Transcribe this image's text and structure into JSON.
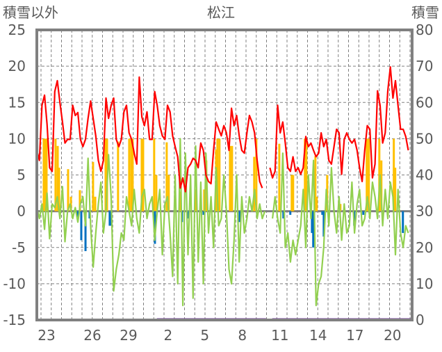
{
  "chart_data": {
    "type": "line",
    "title": "松江",
    "ylabel_left": "積雪以外",
    "ylabel_right": "積雪",
    "ylim_left": [
      -15,
      25
    ],
    "yticks_left": [
      25,
      20,
      15,
      10,
      5,
      0,
      -5,
      -10,
      -15
    ],
    "ylim_right": [
      0,
      80
    ],
    "yticks_right": [
      80,
      70,
      60,
      50,
      40,
      30,
      20,
      10,
      0
    ],
    "xlim_days": [
      0,
      29.3
    ],
    "xticks": [
      {
        "label": "23",
        "t": 0.76
      },
      {
        "label": "26",
        "t": 4.34
      },
      {
        "label": "29",
        "t": 7.16
      },
      {
        "label": "2",
        "t": 10.25
      },
      {
        "label": "5",
        "t": 13.12
      },
      {
        "label": "8",
        "t": 16.05
      },
      {
        "label": "11",
        "t": 18.98
      },
      {
        "label": "14",
        "t": 21.96
      },
      {
        "label": "17",
        "t": 24.84
      },
      {
        "label": "20",
        "t": 27.77
      }
    ],
    "grid": true,
    "colors": {
      "red": "#ff0000",
      "green": "#92d050",
      "orange": "#ffc000",
      "blue": "#0070c0",
      "purple": "#7030a0",
      "frame": "#808080"
    },
    "line_step_days": 0.2,
    "red_series": [
      8.4,
      7,
      14.6,
      16,
      12,
      6,
      5.5,
      16.5,
      18,
      15,
      12.3,
      9.4,
      9.9,
      9.9,
      14.6,
      13.2,
      13.6,
      9.9,
      8.9,
      9.9,
      12.8,
      15.2,
      12.8,
      10.4,
      7,
      5.5,
      7,
      15.6,
      12.8,
      14.6,
      15.6,
      9.9,
      8.9,
      9.9,
      13.7,
      14.6,
      10.8,
      9.9,
      8,
      6.5,
      18.5,
      13,
      11.8,
      13.7,
      9.9,
      9.9,
      16.5,
      14.6,
      11.8,
      10.4,
      9.9,
      14.6,
      13.7,
      10.4,
      8.9,
      7.5,
      3.2,
      4.6,
      2.7,
      6,
      6.5,
      7.3,
      7,
      6,
      9.4,
      8.4,
      5,
      4.1,
      3.8,
      8.4,
      12.3,
      11.3,
      10.4,
      11.8,
      10.8,
      8.4,
      14.2,
      11.8,
      13.2,
      10.4,
      8.4,
      8,
      10.8,
      13.2,
      12.3,
      10.8,
      7,
      4.1,
      3.2,
      null,
      null,
      6,
      4.6,
      5.5,
      14.6,
      10.8,
      12.3,
      9.4,
      6,
      5.5,
      7.5,
      5.5,
      6,
      5.1,
      6,
      10.3,
      8.9,
      9.4,
      8.4,
      7.5,
      8,
      10.8,
      8.9,
      9.9,
      7,
      6.5,
      8.9,
      11.3,
      10.8,
      5.1,
      9.9,
      10.8,
      9.9,
      9.4,
      9.9,
      8.4,
      6,
      4.1,
      8.4,
      11.8,
      11.3,
      4.6,
      6.5,
      16.6,
      14.6,
      9.4,
      10.8,
      16.6,
      19.9,
      15.6,
      18,
      14.6,
      11.3,
      11.3,
      10.3,
      8.4
    ],
    "green_series": [
      0.5,
      -1,
      1,
      -2.5,
      2.5,
      -3.8,
      1,
      0.5,
      2,
      -1,
      3.4,
      -4.2,
      0,
      1,
      -1,
      0.5,
      -1.5,
      1,
      2,
      -2,
      7.3,
      -2,
      -7.7,
      -3,
      1,
      4,
      -3,
      0,
      7.8,
      2,
      -11,
      -8,
      -6,
      -3,
      -4,
      2,
      0,
      -2,
      3,
      -1,
      -3,
      2,
      3,
      -1,
      1,
      2,
      -4,
      0,
      3,
      -6,
      1,
      2,
      -3,
      -9,
      5,
      -10,
      10,
      -13,
      8,
      -6,
      5,
      -12,
      9,
      -7,
      4,
      -10,
      8,
      -3,
      2,
      -5,
      6,
      -2,
      -1,
      5,
      0,
      -8,
      -10,
      -4,
      5,
      -7,
      2,
      -3,
      -1,
      2,
      0,
      3,
      -1,
      1,
      -1,
      0,
      null,
      null,
      -1,
      2,
      -1,
      -3,
      8,
      -5,
      -3,
      -7,
      -4,
      -6,
      -4,
      -2,
      3,
      -5,
      5,
      -1,
      7,
      -13,
      -10,
      -9,
      -5,
      3,
      -2,
      6,
      0,
      -3,
      2,
      -4,
      1,
      -3,
      -2,
      4,
      -3,
      1,
      3,
      -2,
      -1,
      2,
      -1,
      4,
      2,
      -1,
      5,
      -2,
      3,
      -1,
      4,
      2,
      -6,
      3,
      -3,
      -5,
      -2,
      -3
    ],
    "orange_bars": [
      [
        0.54,
        10
      ],
      [
        0.65,
        10
      ],
      [
        0.76,
        10
      ],
      [
        1.46,
        10
      ],
      [
        1.63,
        9
      ],
      [
        1.74,
        6
      ],
      [
        2.44,
        5.8
      ],
      [
        2.66,
        2
      ],
      [
        3.36,
        2.9
      ],
      [
        4.39,
        6.8
      ],
      [
        4.56,
        2
      ],
      [
        5.37,
        10
      ],
      [
        5.48,
        10
      ],
      [
        6.34,
        9.6
      ],
      [
        7.21,
        10
      ],
      [
        7.38,
        10
      ],
      [
        7.48,
        10
      ],
      [
        8.19,
        10
      ],
      [
        8.3,
        10
      ],
      [
        9.16,
        10
      ],
      [
        9.33,
        5
      ],
      [
        10.14,
        9.5
      ],
      [
        10.3,
        5
      ],
      [
        11.23,
        2.7
      ],
      [
        12.42,
        3
      ],
      [
        13.07,
        3
      ],
      [
        13.23,
        7
      ],
      [
        14.0,
        8.5
      ],
      [
        14.1,
        10
      ],
      [
        14.26,
        10
      ],
      [
        15.08,
        9
      ],
      [
        15.24,
        9
      ],
      [
        16.0,
        1
      ],
      [
        16.97,
        7.5
      ],
      [
        17.14,
        10
      ],
      [
        18.93,
        9.3
      ],
      [
        19.9,
        5
      ],
      [
        20.01,
        5
      ],
      [
        20.93,
        10
      ],
      [
        21.04,
        10
      ],
      [
        21.75,
        7.6
      ],
      [
        21.85,
        2
      ],
      [
        22.67,
        5
      ],
      [
        23.7,
        1
      ],
      [
        25.76,
        10
      ],
      [
        25.92,
        10
      ],
      [
        26.74,
        10
      ],
      [
        26.9,
        7
      ],
      [
        27.87,
        10
      ],
      [
        27.98,
        6
      ]
    ],
    "blue_bars": [
      [
        3.2,
        -1
      ],
      [
        3.47,
        -4
      ],
      [
        3.8,
        -5.5
      ],
      [
        4.12,
        -1
      ],
      [
        5.69,
        -2
      ],
      [
        5.8,
        -2
      ],
      [
        9.22,
        -4.5
      ],
      [
        11.33,
        -1.5
      ],
      [
        11.77,
        -1
      ],
      [
        13.02,
        -0.5
      ],
      [
        15.84,
        -1.5
      ],
      [
        19.25,
        -1
      ],
      [
        19.79,
        -0.5
      ],
      [
        21.48,
        -3
      ],
      [
        21.58,
        -5
      ],
      [
        22.29,
        -0.5
      ],
      [
        22.4,
        -3.5
      ],
      [
        24.78,
        -2
      ],
      [
        25.49,
        -0.5
      ],
      [
        28.58,
        -3
      ]
    ],
    "snow_depth_segments": [
      {
        "from": 9.38,
        "to": 17.9,
        "value": 0
      },
      {
        "from": 18.38,
        "to": 29.3,
        "value": 0
      }
    ]
  }
}
